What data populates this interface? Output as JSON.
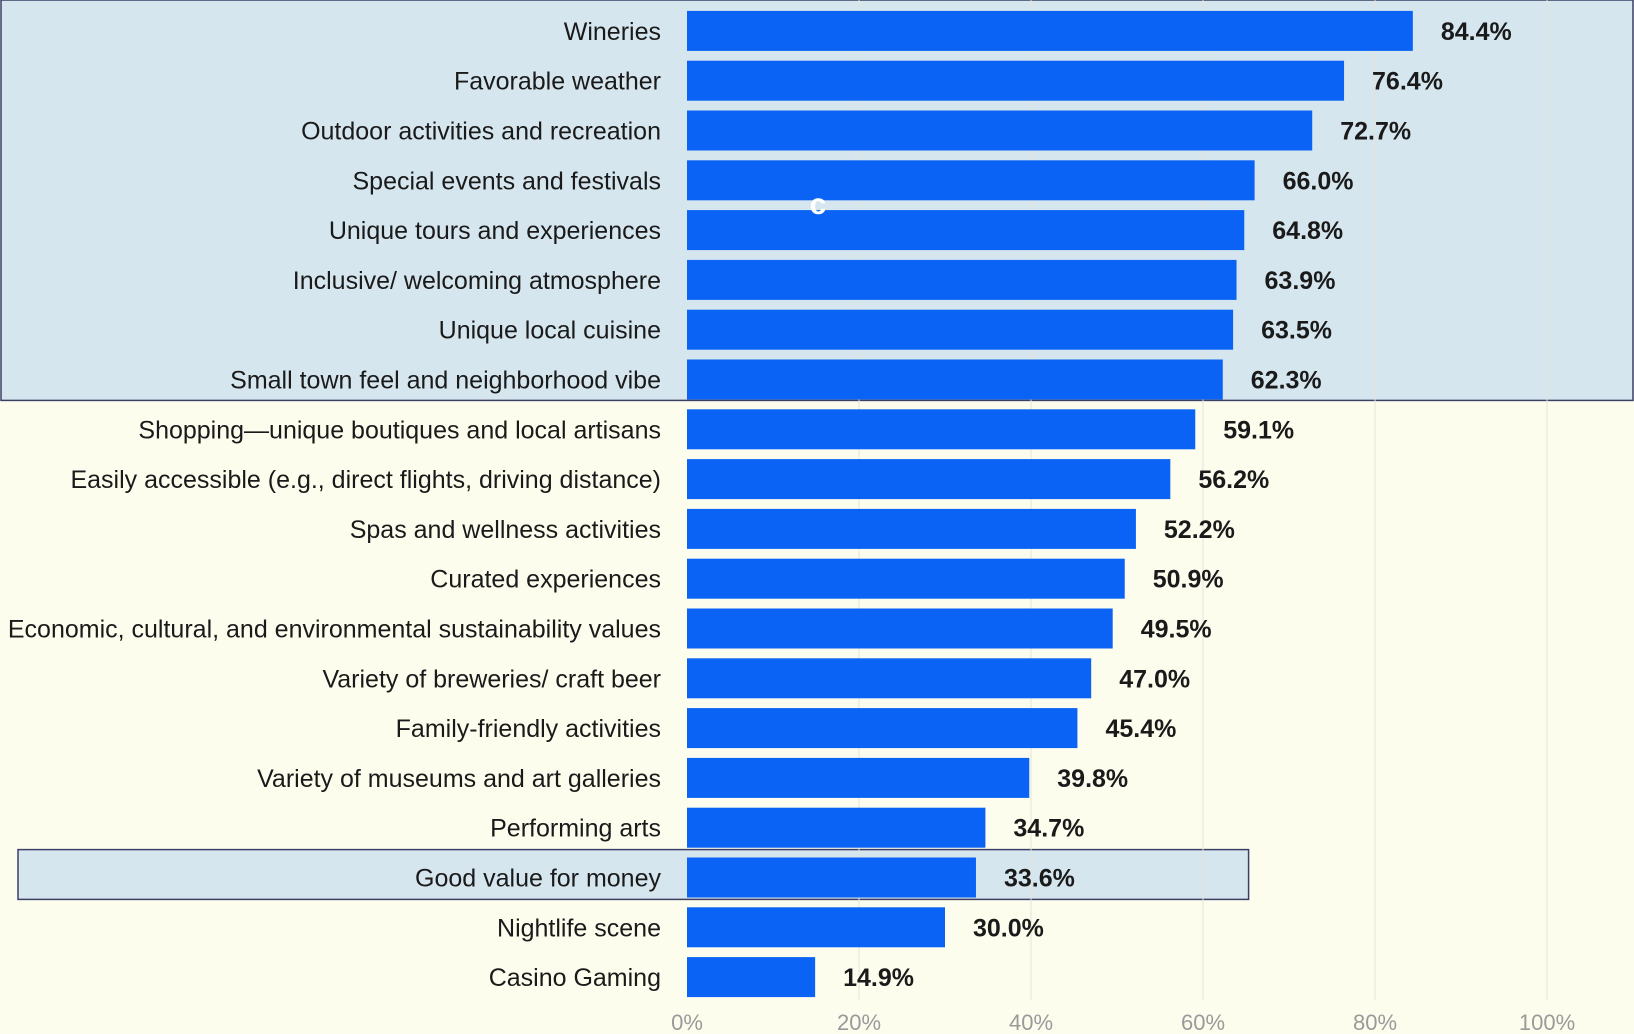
{
  "colors": {
    "background": "#fdfdee",
    "bar": "#0a63f5",
    "highlight_fill": "#d6e6ef",
    "highlight_border": "#3b3f66",
    "grid": "#e4e4d8"
  },
  "cursor_glyph": "c",
  "chart_data": {
    "type": "bar",
    "orientation": "horizontal",
    "categories": [
      "Wineries",
      "Favorable weather",
      "Outdoor activities and recreation",
      "Special events and festivals",
      "Unique tours and experiences",
      "Inclusive/ welcoming atmosphere",
      "Unique local cuisine",
      "Small town feel and neighborhood vibe",
      "Shopping—unique boutiques and local artisans",
      "Easily accessible (e.g., direct flights, driving distance)",
      "Spas and wellness activities",
      "Curated experiences",
      "Economic, cultural, and environmental sustainability values",
      "Variety of breweries/ craft beer",
      "Family-friendly activities",
      "Variety of museums and art galleries",
      "Performing arts",
      "Good value for money",
      "Nightlife scene",
      "Casino Gaming"
    ],
    "values": [
      84.4,
      76.4,
      72.7,
      66.0,
      64.8,
      63.9,
      63.5,
      62.3,
      59.1,
      56.2,
      52.2,
      50.9,
      49.5,
      47.0,
      45.4,
      39.8,
      34.7,
      33.6,
      30.0,
      14.9
    ],
    "value_labels": [
      "84.4%",
      "76.4%",
      "72.7%",
      "66.0%",
      "64.8%",
      "63.9%",
      "63.5%",
      "62.3%",
      "59.1%",
      "56.2%",
      "52.2%",
      "50.9%",
      "49.5%",
      "47.0%",
      "45.4%",
      "39.8%",
      "34.7%",
      "33.6%",
      "30.0%",
      "14.9%"
    ],
    "xlim": [
      0,
      100
    ],
    "x_ticks": [
      0,
      20,
      40,
      60,
      80,
      100
    ],
    "x_tick_labels": [
      "0%",
      "20%",
      "40%",
      "60%",
      "80%",
      "100%"
    ],
    "grid": true,
    "highlighted_groups": [
      {
        "from_index": 0,
        "to_index": 7
      },
      {
        "from_index": 17,
        "to_index": 17
      }
    ]
  }
}
